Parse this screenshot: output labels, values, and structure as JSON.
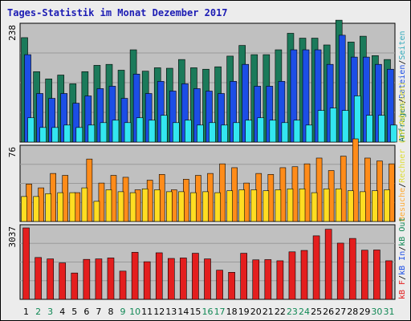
{
  "title": "Tages-Statistik im Monat Dezember 2017",
  "colors": {
    "hits": "#1b7a5a",
    "files": "#1c4ee6",
    "pages": "#33e6f0",
    "visits": "#ff8c1a",
    "sites": "#ffdd22",
    "kbytes": "#e41e1e",
    "weekday_label": "#000000",
    "weekend_label": "#118855",
    "panel_bg": "#c0c0c0",
    "panel_border": "#000000"
  },
  "legend": {
    "top": [
      {
        "text": "Anfragen",
        "color": "#1b7a5a"
      },
      {
        "text": "/",
        "color": "#000000"
      },
      {
        "text": "Dateien",
        "color": "#1c4ee6"
      },
      {
        "text": "/",
        "color": "#000000"
      },
      {
        "text": "Seiten",
        "color": "#33aabb"
      }
    ],
    "middle": [
      {
        "text": "Besuche",
        "color": "#ffaa33"
      },
      {
        "text": "/",
        "color": "#000000"
      },
      {
        "text": "Rechner (IP-Adressen)",
        "color": "#dddd33"
      }
    ],
    "bottom": [
      {
        "text": "kB F",
        "color": "#e41e1e"
      },
      {
        "text": "/",
        "color": "#000000"
      },
      {
        "text": "kB In",
        "color": "#1c4ee6"
      },
      {
        "text": "/",
        "color": "#000000"
      },
      {
        "text": "kB Out",
        "color": "#118855"
      }
    ]
  },
  "chart_data": {
    "type": "bar",
    "categories": [
      "1",
      "2",
      "3",
      "4",
      "5",
      "6",
      "7",
      "8",
      "9",
      "10",
      "11",
      "12",
      "13",
      "14",
      "15",
      "16",
      "17",
      "18",
      "19",
      "20",
      "21",
      "22",
      "23",
      "24",
      "25",
      "26",
      "27",
      "28",
      "29",
      "30",
      "31"
    ],
    "weekend_days": [
      "2",
      "3",
      "9",
      "10",
      "16",
      "17",
      "23",
      "24",
      "30",
      "31"
    ],
    "panels": [
      {
        "ymax": 238,
        "series": [
          {
            "name": "Anfragen",
            "values": [
              215,
              145,
              130,
              138,
              120,
              145,
              158,
              160,
              148,
              190,
              146,
              153,
              152,
              170,
              153,
              150,
              155,
              177,
              199,
              180,
              180,
              190,
              224,
              214,
              214,
              200,
              251,
              206,
              218,
              178,
              170
            ]
          },
          {
            "name": "Dateien",
            "values": [
              180,
              100,
              90,
              100,
              80,
              95,
              110,
              115,
              90,
              140,
              100,
              125,
              105,
              120,
              110,
              105,
              100,
              125,
              160,
              115,
              115,
              125,
              190,
              190,
              190,
              160,
              220,
              175,
              175,
              160,
              150
            ]
          },
          {
            "name": "Seiten",
            "values": [
              50,
              30,
              30,
              35,
              30,
              35,
              40,
              45,
              40,
              50,
              45,
              55,
              40,
              45,
              35,
              40,
              35,
              40,
              45,
              50,
              45,
              40,
              45,
              35,
              65,
              70,
              65,
              95,
              55,
              55,
              35
            ]
          }
        ]
      },
      {
        "ymax": 76,
        "series": [
          {
            "name": "Besuche",
            "values": [
              39,
              35,
              50,
              48,
              30,
              65,
              40,
              48,
              46,
              33,
              43,
              49,
              33,
              44,
              48,
              50,
              60,
              56,
              40,
              50,
              49,
              56,
              57,
              60,
              66,
              53,
              68,
              86,
              66,
              63,
              60
            ]
          },
          {
            "name": "Rechner (IP-Adressen)",
            "values": [
              26,
              26,
              29,
              30,
              30,
              35,
              21,
              33,
              31,
              30,
              34,
              33,
              31,
              31,
              30,
              31,
              30,
              32,
              33,
              33,
              32,
              33,
              34,
              34,
              30,
              34,
              34,
              32,
              31,
              32,
              33
            ]
          }
        ]
      },
      {
        "ymax": 3037,
        "series": [
          {
            "name": "kB F",
            "values": [
              3037,
              1780,
              1720,
              1550,
              1120,
              1700,
              1720,
              1760,
              1200,
              2000,
              1600,
              1980,
              1740,
              1760,
              1960,
              1720,
              1240,
              1150,
              1960,
              1680,
              1690,
              1640,
              2020,
              2080,
              2700,
              2980,
              2390,
              2590,
              2090,
              2100,
              1640
            ]
          }
        ]
      }
    ]
  }
}
